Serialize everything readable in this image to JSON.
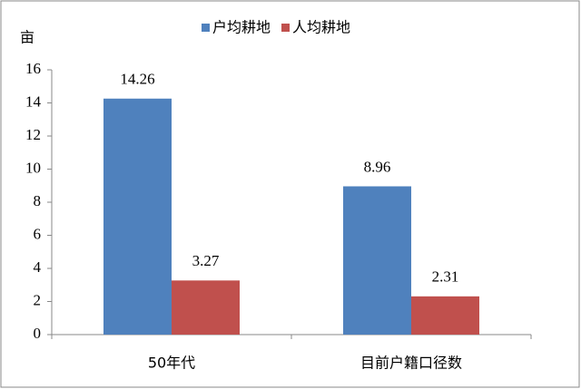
{
  "chart_data": {
    "type": "bar",
    "y_label": "亩",
    "categories": [
      "50年代",
      "目前户籍口径数"
    ],
    "series": [
      {
        "name": "户均耕地",
        "color": "#4f81bd",
        "values": [
          14.26,
          8.96
        ]
      },
      {
        "name": "人均耕地",
        "color": "#c0504d",
        "values": [
          3.27,
          2.31
        ]
      }
    ],
    "ylim": [
      0,
      16
    ],
    "yticks": [
      0,
      2,
      4,
      6,
      8,
      10,
      12,
      14,
      16
    ],
    "legend": "top",
    "data_labels": true
  }
}
